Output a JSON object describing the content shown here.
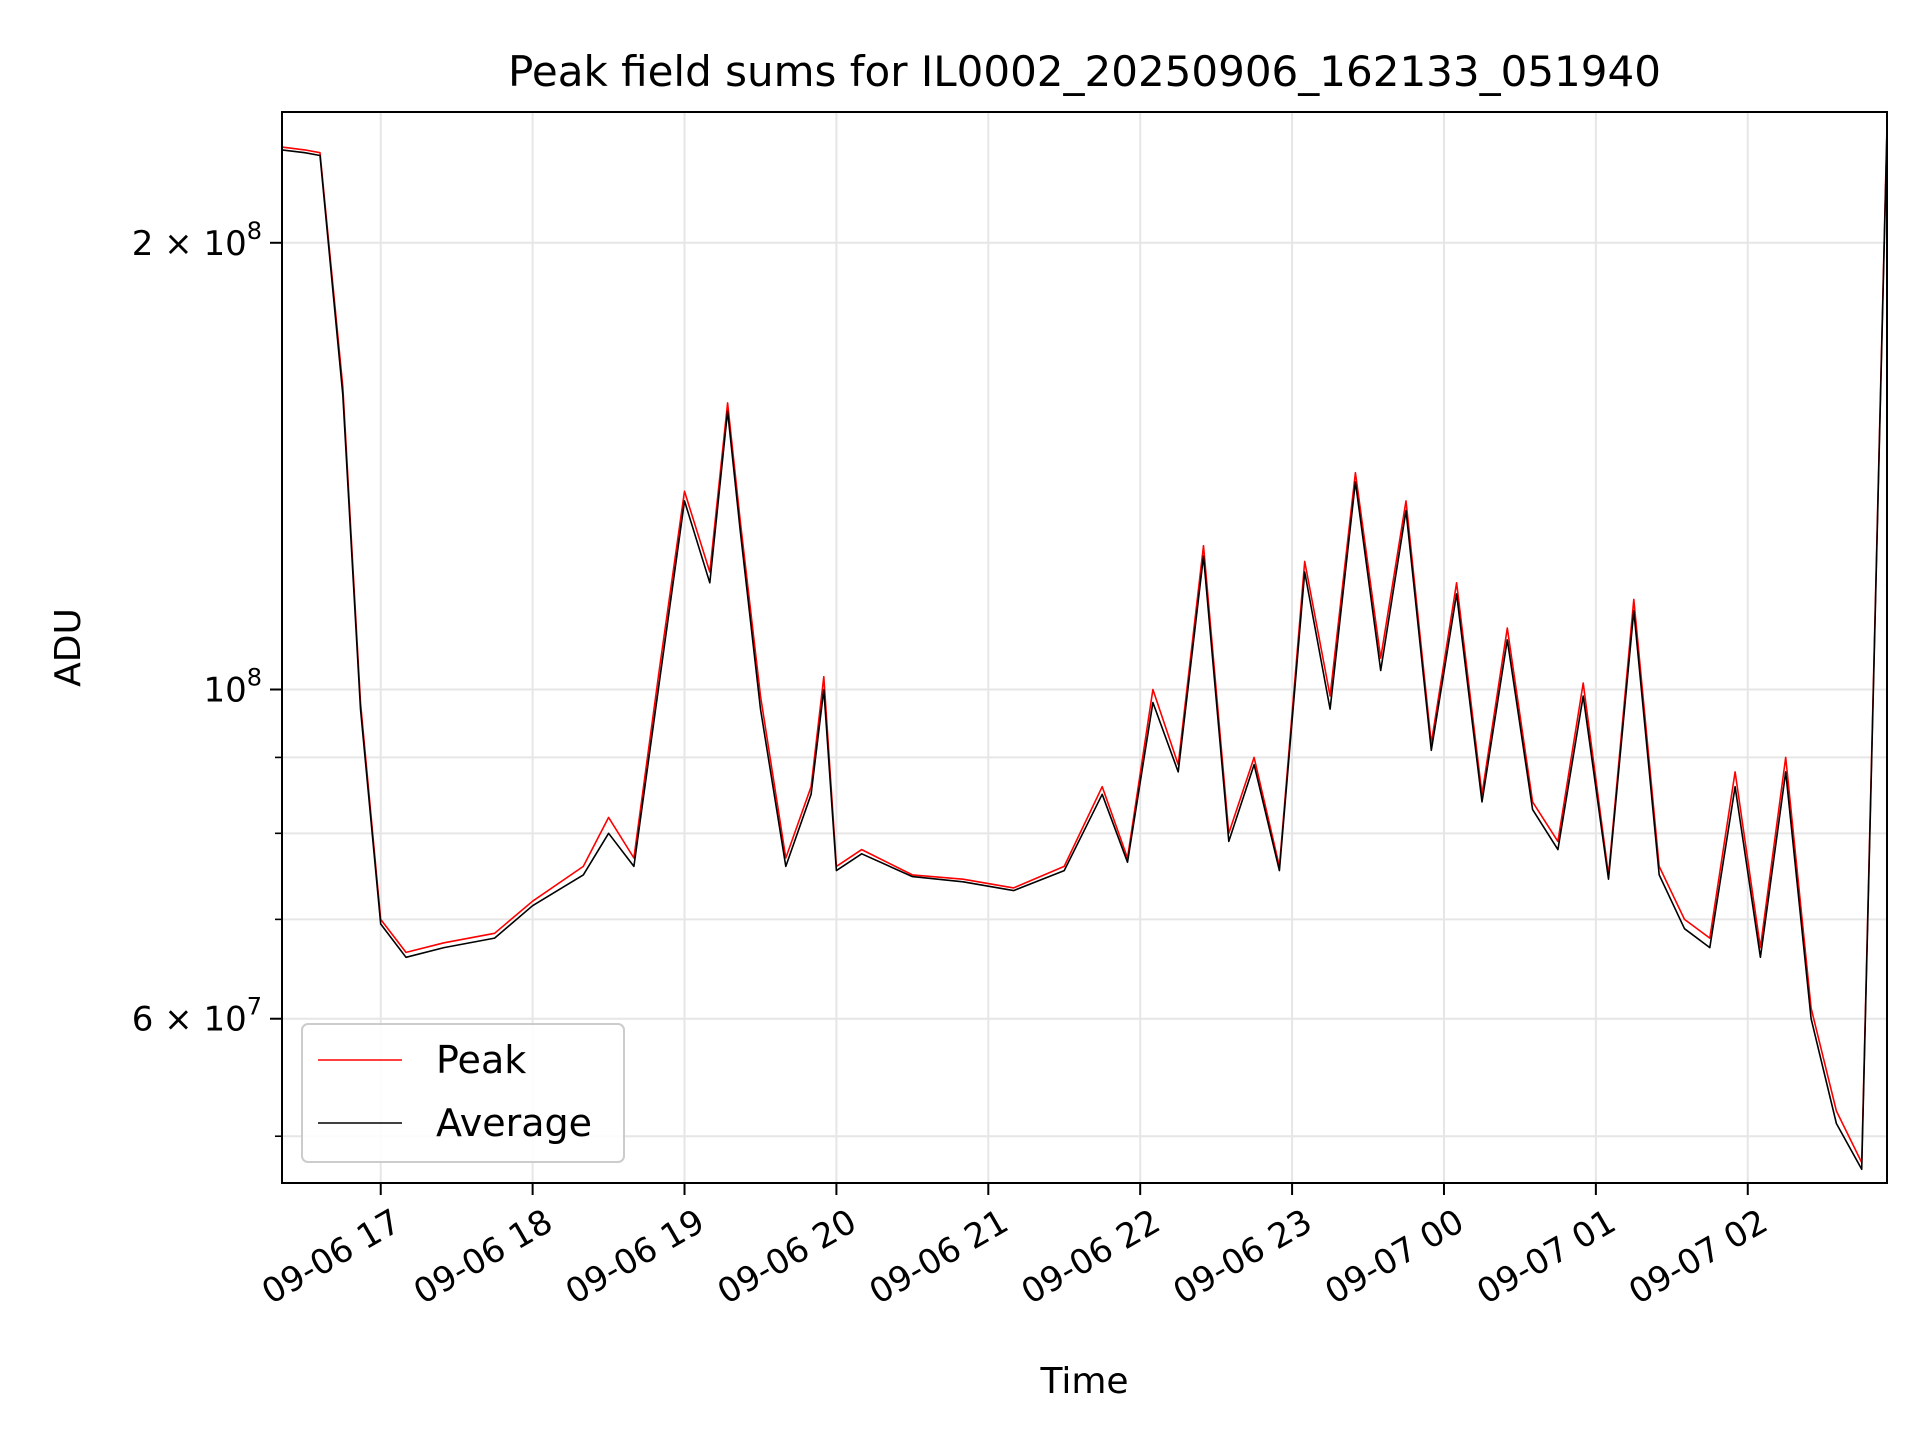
{
  "chart_data": {
    "type": "line",
    "title": "Peak field sums for IL0002_20250906_162133_051940",
    "xlabel": "Time",
    "ylabel": "ADU",
    "y_scale": "log",
    "ylim": [
      46500000,
      245000000
    ],
    "xlim": [
      "2025-09-06 16:21",
      "2025-09-07 02:55"
    ],
    "x_ticks": [
      {
        "t": "2025-09-06 17:00",
        "label": "09-06 17"
      },
      {
        "t": "2025-09-06 18:00",
        "label": "09-06 18"
      },
      {
        "t": "2025-09-06 19:00",
        "label": "09-06 19"
      },
      {
        "t": "2025-09-06 20:00",
        "label": "09-06 20"
      },
      {
        "t": "2025-09-06 21:00",
        "label": "09-06 21"
      },
      {
        "t": "2025-09-06 22:00",
        "label": "09-06 22"
      },
      {
        "t": "2025-09-06 23:00",
        "label": "09-06 23"
      },
      {
        "t": "2025-09-07 00:00",
        "label": "09-07 00"
      },
      {
        "t": "2025-09-07 01:00",
        "label": "09-07 01"
      },
      {
        "t": "2025-09-07 02:00",
        "label": "09-07 02"
      }
    ],
    "y_major_ticks": [
      {
        "value": 60000000,
        "mant": "6",
        "exp": "7"
      },
      {
        "value": 100000000,
        "mant": "",
        "exp": "8"
      },
      {
        "value": 200000000,
        "mant": "2",
        "exp": "8"
      }
    ],
    "y_minor_ticks": [
      50000000,
      70000000,
      80000000,
      90000000
    ],
    "grid": true,
    "legend": {
      "position": "lower-left"
    },
    "series": [
      {
        "name": "Peak",
        "color": "#ff0000",
        "x": [
          "2025-09-06 16:21",
          "2025-09-06 16:30",
          "2025-09-06 16:36",
          "2025-09-06 16:45",
          "2025-09-06 16:52",
          "2025-09-06 17:00",
          "2025-09-06 17:10",
          "2025-09-06 17:25",
          "2025-09-06 17:45",
          "2025-09-06 18:00",
          "2025-09-06 18:20",
          "2025-09-06 18:30",
          "2025-09-06 18:40",
          "2025-09-06 18:50",
          "2025-09-06 19:00",
          "2025-09-06 19:10",
          "2025-09-06 19:17",
          "2025-09-06 19:22",
          "2025-09-06 19:30",
          "2025-09-06 19:40",
          "2025-09-06 19:50",
          "2025-09-06 19:55",
          "2025-09-06 20:00",
          "2025-09-06 20:10",
          "2025-09-06 20:30",
          "2025-09-06 20:50",
          "2025-09-06 21:10",
          "2025-09-06 21:30",
          "2025-09-06 21:45",
          "2025-09-06 21:55",
          "2025-09-06 22:05",
          "2025-09-06 22:15",
          "2025-09-06 22:25",
          "2025-09-06 22:35",
          "2025-09-06 22:45",
          "2025-09-06 22:55",
          "2025-09-06 23:05",
          "2025-09-06 23:15",
          "2025-09-06 23:25",
          "2025-09-06 23:35",
          "2025-09-06 23:45",
          "2025-09-06 23:55",
          "2025-09-07 00:05",
          "2025-09-07 00:15",
          "2025-09-07 00:25",
          "2025-09-07 00:35",
          "2025-09-07 00:45",
          "2025-09-07 00:55",
          "2025-09-07 01:05",
          "2025-09-07 01:15",
          "2025-09-07 01:25",
          "2025-09-07 01:35",
          "2025-09-07 01:45",
          "2025-09-07 01:55",
          "2025-09-07 02:05",
          "2025-09-07 02:15",
          "2025-09-07 02:25",
          "2025-09-07 02:35",
          "2025-09-07 02:45",
          "2025-09-07 02:55"
        ],
        "values": [
          232000000,
          231000000,
          230000000,
          160000000,
          98000000,
          70000000,
          66500000,
          67500000,
          68500000,
          72000000,
          76000000,
          82000000,
          77000000,
          103000000,
          136000000,
          120000000,
          156000000,
          130000000,
          99000000,
          77000000,
          86000000,
          102000000,
          76000000,
          78000000,
          75000000,
          74500000,
          73500000,
          76000000,
          86000000,
          77000000,
          100000000,
          89000000,
          125000000,
          80000000,
          90000000,
          76000000,
          122000000,
          99000000,
          140000000,
          105000000,
          134000000,
          92000000,
          118000000,
          85000000,
          110000000,
          84000000,
          79000000,
          101000000,
          75000000,
          115000000,
          76000000,
          70000000,
          68000000,
          88000000,
          67000000,
          90000000,
          61000000,
          52000000,
          48000000,
          240000000
        ]
      },
      {
        "name": "Average",
        "color": "#000000",
        "x": [
          "2025-09-06 16:21",
          "2025-09-06 16:30",
          "2025-09-06 16:36",
          "2025-09-06 16:45",
          "2025-09-06 16:52",
          "2025-09-06 17:00",
          "2025-09-06 17:10",
          "2025-09-06 17:25",
          "2025-09-06 17:45",
          "2025-09-06 18:00",
          "2025-09-06 18:20",
          "2025-09-06 18:30",
          "2025-09-06 18:40",
          "2025-09-06 18:50",
          "2025-09-06 19:00",
          "2025-09-06 19:10",
          "2025-09-06 19:17",
          "2025-09-06 19:22",
          "2025-09-06 19:30",
          "2025-09-06 19:40",
          "2025-09-06 19:50",
          "2025-09-06 19:55",
          "2025-09-06 20:00",
          "2025-09-06 20:10",
          "2025-09-06 20:30",
          "2025-09-06 20:50",
          "2025-09-06 21:10",
          "2025-09-06 21:30",
          "2025-09-06 21:45",
          "2025-09-06 21:55",
          "2025-09-06 22:05",
          "2025-09-06 22:15",
          "2025-09-06 22:25",
          "2025-09-06 22:35",
          "2025-09-06 22:45",
          "2025-09-06 22:55",
          "2025-09-06 23:05",
          "2025-09-06 23:15",
          "2025-09-06 23:25",
          "2025-09-06 23:35",
          "2025-09-06 23:45",
          "2025-09-06 23:55",
          "2025-09-07 00:05",
          "2025-09-07 00:15",
          "2025-09-07 00:25",
          "2025-09-07 00:35",
          "2025-09-07 00:45",
          "2025-09-07 00:55",
          "2025-09-07 01:05",
          "2025-09-07 01:15",
          "2025-09-07 01:25",
          "2025-09-07 01:35",
          "2025-09-07 01:45",
          "2025-09-07 01:55",
          "2025-09-07 02:05",
          "2025-09-07 02:15",
          "2025-09-07 02:25",
          "2025-09-07 02:35",
          "2025-09-07 02:45",
          "2025-09-07 02:55"
        ],
        "values": [
          231000000,
          230000000,
          229000000,
          158000000,
          97000000,
          69500000,
          66000000,
          67000000,
          68000000,
          71500000,
          75000000,
          80000000,
          76000000,
          101000000,
          134000000,
          118000000,
          154000000,
          128000000,
          97000000,
          76000000,
          85000000,
          100000000,
          75500000,
          77500000,
          74800000,
          74200000,
          73200000,
          75500000,
          85000000,
          76500000,
          98000000,
          88000000,
          123000000,
          79000000,
          89000000,
          75500000,
          120000000,
          97000000,
          138000000,
          103000000,
          132000000,
          91000000,
          116000000,
          84000000,
          108000000,
          83000000,
          78000000,
          99000000,
          74500000,
          113000000,
          75000000,
          69000000,
          67000000,
          86000000,
          66000000,
          88000000,
          60000000,
          51000000,
          47500000,
          238000000
        ]
      }
    ]
  }
}
